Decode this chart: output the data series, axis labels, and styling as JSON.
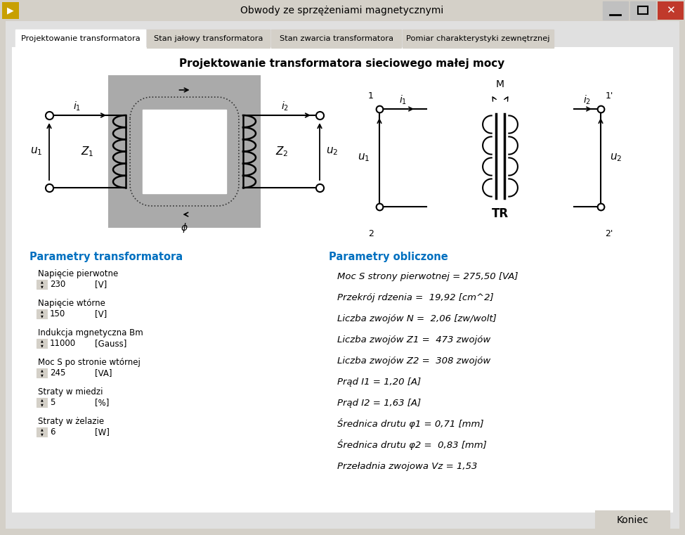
{
  "title_bar": "Obwody ze sprzężeniami magnetycznymi",
  "tab_active": "Projektowanie transformatora",
  "tab2": "Stan jałowy transformatora",
  "tab3": "Stan zwarcia transformatora",
  "tab4": "Pomiar charakterystyki zewnętrznej",
  "main_title": "Projektowanie transformatora sieciowego małej mocy",
  "section1_title": "Parametry transformatora",
  "section2_title": "Parametry obliczone",
  "params_labels": [
    "Napięcie pierwotne",
    "Napięcie wtórne",
    "Indukcja mgnetyczna Bm",
    "Moc S po stronie wtórnej",
    "Straty w miedzi",
    "Straty w żelazie"
  ],
  "params_values": [
    "230",
    "150",
    "11000",
    "245",
    "5",
    "6"
  ],
  "params_units": [
    "[V]",
    "[V]",
    "[Gauss]",
    "[VA]",
    "[%]",
    "[W]"
  ],
  "results": [
    "Moc S strony pierwotnej = 275,50 [VA]",
    "Przekrój rdzenia =  19,92 [cm^2]",
    "Liczba zwojów N =  2,06 [zw/wolt]",
    "Liczba zwojów Z1 =  473 zwojów",
    "Liczba zwojów Z2 =  308 zwojów",
    "Prąd I1 = 1,20 [A]",
    "Prąd I2 = 1,63 [A]",
    "Średnica drutu φ1 = 0,71 [mm]",
    "Średnica drutu φ2 =  0,83 [mm]",
    "Przeładnia zwojowa Vz = 1,53"
  ],
  "button_text": "Koniec",
  "window_bg": "#d4d0c8",
  "panel_bg": "#ffffff",
  "section_title_color": "#0070c0",
  "close_btn_color": "#c0392b"
}
